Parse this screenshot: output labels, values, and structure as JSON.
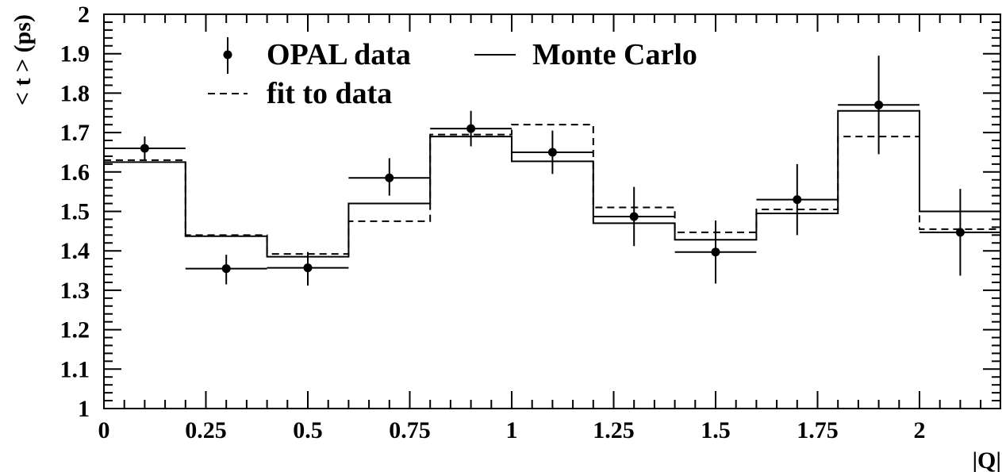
{
  "chart_data": {
    "type": "line",
    "title": "",
    "xlabel": "|Q|",
    "ylabel": "< t > (ps)",
    "xlim": [
      0,
      2.2
    ],
    "ylim": [
      1.0,
      2.0
    ],
    "x_ticks": [
      0,
      0.25,
      0.5,
      0.75,
      1,
      1.25,
      1.5,
      1.75,
      2
    ],
    "x_tick_labels": [
      "0",
      "0.25",
      "0.5",
      "0.75",
      "1",
      "1.25",
      "1.5",
      "1.75",
      "2"
    ],
    "y_ticks": [
      1,
      1.1,
      1.2,
      1.3,
      1.4,
      1.5,
      1.6,
      1.7,
      1.8,
      1.9,
      2
    ],
    "y_tick_labels": [
      "1",
      "1.1",
      "1.2",
      "1.3",
      "1.4",
      "1.5",
      "1.6",
      "1.7",
      "1.8",
      "1.9",
      "2"
    ],
    "grid": false,
    "legend_position": "top-left",
    "legend": {
      "data": "OPAL data",
      "mc": "Monte Carlo",
      "fit": "fit to data"
    },
    "series": [
      {
        "name": "OPAL data",
        "style": "points-with-errors",
        "x": [
          0.1,
          0.3,
          0.5,
          0.7,
          0.9,
          1.1,
          1.3,
          1.5,
          1.7,
          1.9,
          2.1
        ],
        "y": [
          1.66,
          1.355,
          1.357,
          1.585,
          1.71,
          1.65,
          1.487,
          1.397,
          1.53,
          1.77,
          1.447
        ],
        "x_err": [
          0.1,
          0.1,
          0.1,
          0.1,
          0.1,
          0.1,
          0.1,
          0.1,
          0.1,
          0.1,
          0.1
        ],
        "y_err_low": [
          0.03,
          0.04,
          0.045,
          0.045,
          0.045,
          0.055,
          0.075,
          0.08,
          0.09,
          0.125,
          0.11
        ],
        "y_err_high": [
          0.03,
          0.035,
          0.04,
          0.05,
          0.045,
          0.055,
          0.075,
          0.08,
          0.09,
          0.125,
          0.11
        ]
      },
      {
        "name": "Monte Carlo",
        "style": "solid-step",
        "bin_edges": [
          0,
          0.2,
          0.4,
          0.6,
          0.8,
          1.0,
          1.2,
          1.4,
          1.6,
          1.8,
          2.0,
          2.2
        ],
        "values": [
          1.625,
          1.437,
          1.385,
          1.52,
          1.69,
          1.627,
          1.47,
          1.428,
          1.495,
          1.755,
          1.5
        ]
      },
      {
        "name": "fit to data",
        "style": "dashed-step",
        "bin_edges": [
          0,
          0.2,
          0.4,
          0.6,
          0.8,
          1.0,
          1.2,
          1.4,
          1.6,
          1.8,
          2.0,
          2.2
        ],
        "values": [
          1.63,
          1.44,
          1.392,
          1.475,
          1.695,
          1.72,
          1.51,
          1.447,
          1.505,
          1.69,
          1.455
        ]
      }
    ],
    "colors": {
      "ink": "#000000",
      "background": "#ffffff"
    }
  }
}
